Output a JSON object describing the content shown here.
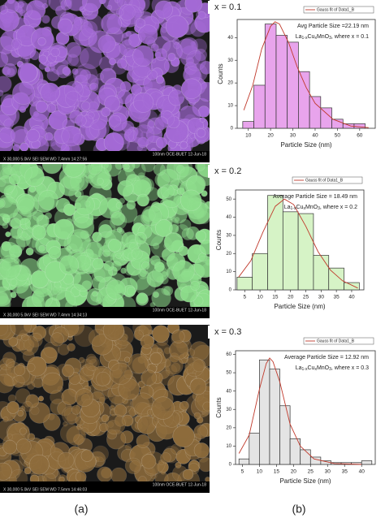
{
  "images": [
    {
      "label": "x = 0.1",
      "color": "#a46ad6",
      "footer_top": "100nm OCE-BUET 12-Jun-18",
      "footer_bottom": "X 30,000  5.0kV SEI  SEM  WD 7.4mm 14:27:56"
    },
    {
      "label": "x = 0.2",
      "color": "#8ede8c",
      "footer_top": "100nm OCE-BUET 12-Jun-18",
      "footer_bottom": "X 30,000  5.0kV SEI  SEM  WD 7.4mm 14:34:13"
    },
    {
      "label": "x = 0.3",
      "color": "#8e6c3c",
      "footer_top": "100nm OCE-BUET 12-Jun-18",
      "footer_bottom": "X 30,000  5.0kV SEI  SEM  WD 7.5mm 14:46:03"
    }
  ],
  "captions": [
    "(a)",
    "(b)"
  ],
  "chart_data": [
    {
      "type": "histogram",
      "legend": "Gauss fit of Data1_B",
      "annotation": "Avg Particle Size =22.19 nm",
      "formula": [
        "La",
        "1-x",
        "Cu",
        "x",
        "MnO",
        "3",
        ", where x = 0.1"
      ],
      "xlabel": "Particle Size (nm)",
      "ylabel": "Counts",
      "color": "#e8a4ec",
      "bins": [
        7.5,
        12.5,
        17.5,
        22.5,
        27.5,
        32.5,
        37.5,
        42.5,
        47.5,
        52.5,
        57.5,
        62.5
      ],
      "values": [
        3,
        19,
        46,
        41,
        38,
        25,
        14,
        9,
        4,
        2,
        2
      ],
      "fit": {
        "x": [
          8,
          12,
          16,
          20,
          22,
          24,
          28,
          32,
          36,
          40,
          48,
          56,
          64
        ],
        "y": [
          8,
          19,
          35,
          45,
          47,
          46,
          38,
          27,
          18,
          11,
          4,
          1,
          0.3
        ],
        "color": "#c0392b"
      },
      "xlim": [
        5,
        67
      ],
      "ylim": [
        0,
        48
      ],
      "xticks": [
        10,
        20,
        30,
        40,
        50,
        60
      ],
      "yticks": [
        0,
        10,
        20,
        30,
        40
      ]
    },
    {
      "type": "histogram",
      "legend": "Gauss fit of Data1_B",
      "annotation": "Average Particle Size = 18.49 nm",
      "formula": [
        "La",
        "1-x",
        "Cu",
        "x",
        "MnO",
        "3",
        ", where x = 0.2"
      ],
      "xlabel": "Particle Size (nm)",
      "ylabel": "Counts",
      "color": "#d6f3c6",
      "bins": [
        2.5,
        7.5,
        12.5,
        17.5,
        22.5,
        27.5,
        32.5,
        37.5,
        42.5
      ],
      "values": [
        7,
        20,
        52,
        43,
        42,
        19,
        12,
        4
      ],
      "fit": {
        "x": [
          3,
          7,
          11,
          15,
          18,
          21,
          25,
          29,
          33,
          37,
          42
        ],
        "y": [
          7,
          16,
          32,
          46,
          50,
          47,
          35,
          21,
          11,
          5,
          1
        ],
        "color": "#c0392b"
      },
      "xlim": [
        2,
        44
      ],
      "ylim": [
        0,
        55
      ],
      "xticks": [
        5,
        10,
        15,
        20,
        25,
        30,
        35,
        40
      ],
      "yticks": [
        0,
        10,
        20,
        30,
        40,
        50
      ]
    },
    {
      "type": "histogram",
      "legend": "Gauss fit of Data1_B",
      "annotation": "Average Particle Size = 12.92 nm",
      "formula": [
        "La",
        "1-x",
        "Cu",
        "x",
        "MnO",
        "3",
        ", where x = 0.3"
      ],
      "xlabel": "Particle Size (nm)",
      "ylabel": "Counts",
      "color": "#e4e4e4",
      "bins": [
        4,
        7,
        10,
        13,
        16,
        19,
        22,
        25,
        28,
        31,
        34,
        37,
        40,
        43
      ],
      "values": [
        3,
        17,
        57,
        52,
        32,
        14,
        8,
        4,
        2,
        1,
        1,
        1,
        2
      ],
      "fit": {
        "x": [
          4,
          7,
          10,
          12,
          13,
          14,
          16,
          19,
          22,
          26,
          32,
          40
        ],
        "y": [
          6,
          16,
          41,
          55,
          58,
          56,
          45,
          22,
          10,
          3,
          0.5,
          0
        ],
        "color": "#c0392b"
      },
      "xlim": [
        3,
        44
      ],
      "ylim": [
        0,
        62
      ],
      "xticks": [
        5,
        10,
        15,
        20,
        25,
        30,
        35,
        40
      ],
      "yticks": [
        0,
        10,
        20,
        30,
        40,
        50,
        60
      ]
    }
  ]
}
